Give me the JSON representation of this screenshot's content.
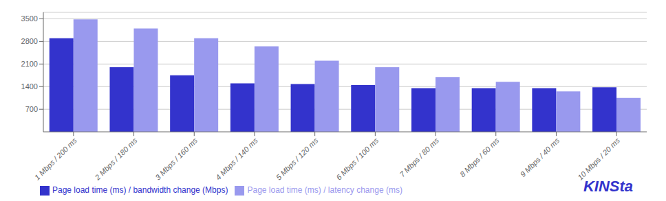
{
  "chart_data": {
    "type": "bar",
    "categories": [
      "1 Mbps / 200 ms",
      "2 Mbps / 180 ms",
      "3 Mbps / 160 ms",
      "4 Mbps / 140 ms",
      "5 Mbps / 120 ms",
      "6 Mbps / 100 ms",
      "7 Mbps / 80 ms",
      "8 Mbps / 60 ms",
      "9 Mbps / 40 ms",
      "10 Mbps / 20 ms"
    ],
    "series": [
      {
        "name": "Page load time (ms) / bandwidth change (Mbps)",
        "color": "#3333cc",
        "values": [
          2900,
          2000,
          1750,
          1500,
          1480,
          1450,
          1350,
          1350,
          1350,
          1380
        ]
      },
      {
        "name": "Page load time (ms) / latency change (ms)",
        "color": "#9999ee",
        "values": [
          3480,
          3200,
          2900,
          2650,
          2200,
          2000,
          1700,
          1550,
          1250,
          1050
        ]
      }
    ],
    "ylim": [
      0,
      3700
    ],
    "yticks": [
      700,
      1400,
      2100,
      2800,
      3500
    ],
    "grid": true,
    "legend": "lower left",
    "annotations": [
      "KINSta"
    ]
  }
}
